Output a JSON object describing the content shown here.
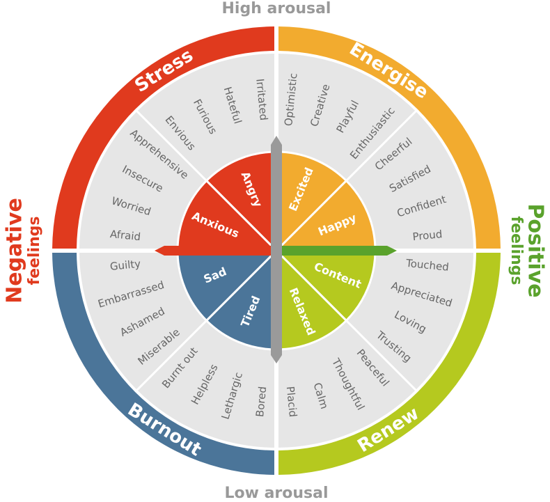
{
  "top_label": "High arousal",
  "bottom_label": "Low arousal",
  "left_label": {
    "line1": "Negative",
    "line2": "feelings"
  },
  "right_label": {
    "line1": "Positive",
    "line2": "feelings"
  },
  "quadrants": [
    {
      "name": "Stress",
      "emotions": [
        {
          "name": "Angry",
          "words": [
            "Irritated",
            "Hateful",
            "Furious",
            "Envious"
          ]
        },
        {
          "name": "Anxious",
          "words": [
            "Apprehensive",
            "Insecure",
            "Worried",
            "Afraid"
          ]
        }
      ]
    },
    {
      "name": "Energise",
      "emotions": [
        {
          "name": "Excited",
          "words": [
            "Optimistic",
            "Creative",
            "Playful",
            "Enthusiastic"
          ]
        },
        {
          "name": "Happy",
          "words": [
            "Cheerful",
            "Satisfied",
            "Confident",
            "Proud"
          ]
        }
      ]
    },
    {
      "name": "Renew",
      "emotions": [
        {
          "name": "Content",
          "words": [
            "Touched",
            "Appreciated",
            "Loving",
            "Trusting"
          ]
        },
        {
          "name": "Relaxed",
          "words": [
            "Peaceful",
            "Thoughtful",
            "Calm",
            "Placid"
          ]
        }
      ]
    },
    {
      "name": "Burnout",
      "emotions": [
        {
          "name": "Tired",
          "words": [
            "Bored",
            "Lethargic",
            "Helpless",
            "Burnt out"
          ]
        },
        {
          "name": "Sad",
          "words": [
            "Miserable",
            "Ashamed",
            "Embarrassed",
            "Guilty"
          ]
        }
      ]
    }
  ]
}
